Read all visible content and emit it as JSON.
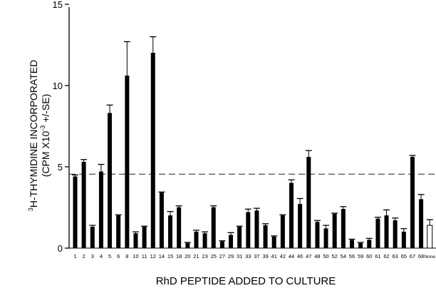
{
  "chart_data": {
    "type": "bar",
    "xlabel": "RhD PEPTIDE ADDED TO CULTURE",
    "ylabel": {
      "line1_prefix_sup": "3",
      "line1_text": "H-THYMIDINE INCORPORATED",
      "line2_text_a": "(CPM X10",
      "line2_sup": "-3",
      "line2_text_b": " +/-SE)"
    },
    "ylim": [
      0,
      16
    ],
    "yticks": [
      0,
      5,
      10,
      15
    ],
    "ytick_labels": [
      "0",
      "5",
      "10",
      "15"
    ],
    "reference_line": 4.55,
    "categories": [
      "1",
      "2",
      "3",
      "4",
      "5",
      "6",
      "8",
      "10",
      "11",
      "12",
      "14",
      "15",
      "18",
      "20",
      "21",
      "23",
      "25",
      "27",
      "29",
      "31",
      "33",
      "37",
      "39",
      "41",
      "42",
      "44",
      "46",
      "47",
      "48",
      "50",
      "52",
      "54",
      "56",
      "59",
      "60",
      "61",
      "62",
      "63",
      "65",
      "67",
      "68",
      "None"
    ],
    "series": [
      {
        "values": [
          4.4,
          5.3,
          1.3,
          4.7,
          8.3,
          2.0,
          10.6,
          0.9,
          1.3,
          12.0,
          3.4,
          2.0,
          2.5,
          0.3,
          1.0,
          0.9,
          2.5,
          0.4,
          0.8,
          1.3,
          2.2,
          2.3,
          1.4,
          0.7,
          2.0,
          4.0,
          2.7,
          5.6,
          1.6,
          1.2,
          2.1,
          2.4,
          0.5,
          0.3,
          0.5,
          1.8,
          2.0,
          1.7,
          1.0,
          5.6,
          3.0,
          1.4
        ],
        "errors": [
          0.1,
          0.15,
          0.1,
          0.45,
          0.5,
          0.05,
          2.1,
          0.1,
          0.05,
          1.0,
          0.05,
          0.25,
          0.1,
          0.05,
          0.1,
          0.1,
          0.1,
          0.05,
          0.15,
          0.05,
          0.2,
          0.15,
          0.1,
          0.05,
          0.05,
          0.2,
          0.35,
          0.4,
          0.1,
          0.2,
          0.05,
          0.15,
          0.05,
          0.05,
          0.1,
          0.1,
          0.35,
          0.15,
          0.2,
          0.1,
          0.3,
          0.35
        ]
      }
    ],
    "last_bar_hollow": true,
    "grid": false,
    "colors": {
      "bar": "#000000",
      "reference_line": "#222222"
    }
  }
}
